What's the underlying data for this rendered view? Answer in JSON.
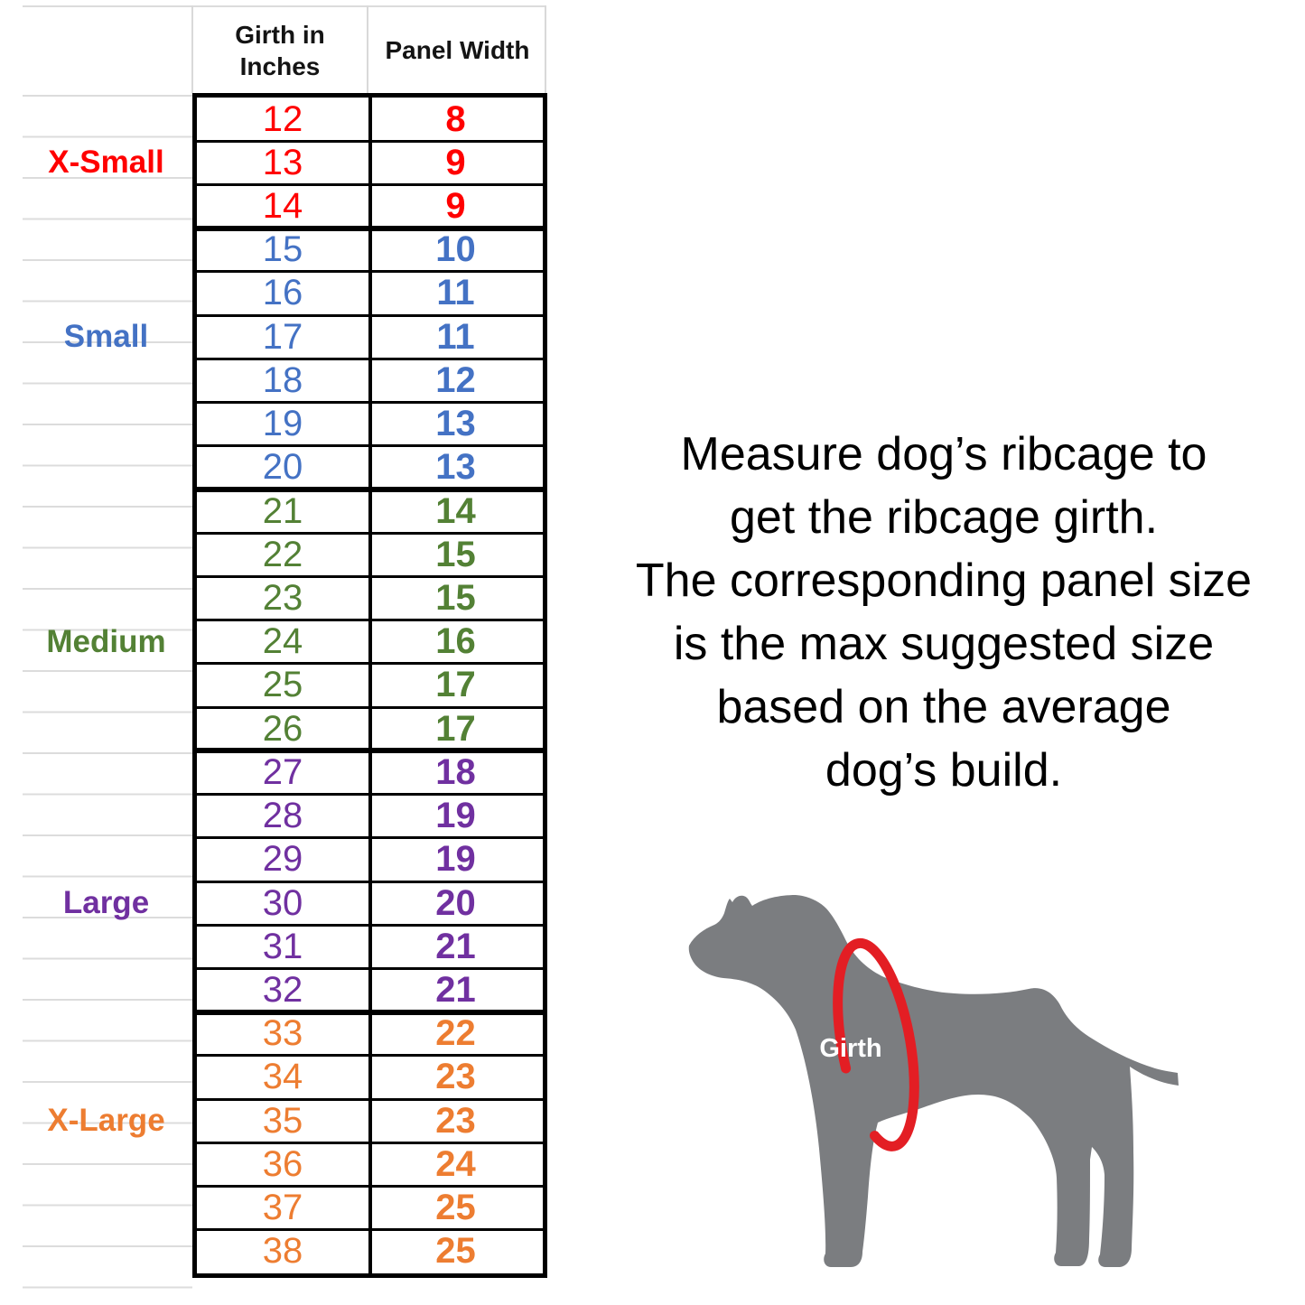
{
  "table": {
    "header": {
      "girth": "Girth in Inches",
      "panel": "Panel Width"
    },
    "groups": [
      {
        "label": "X-Small",
        "color": "#FF0000",
        "rows": [
          [
            12,
            8
          ],
          [
            13,
            9
          ],
          [
            14,
            9
          ]
        ]
      },
      {
        "label": "Small",
        "color": "#4472C4",
        "rows": [
          [
            15,
            10
          ],
          [
            16,
            11
          ],
          [
            17,
            11
          ],
          [
            18,
            12
          ],
          [
            19,
            13
          ],
          [
            20,
            13
          ]
        ]
      },
      {
        "label": "Medium",
        "color": "#538135",
        "rows": [
          [
            21,
            14
          ],
          [
            22,
            15
          ],
          [
            23,
            15
          ],
          [
            24,
            16
          ],
          [
            25,
            17
          ],
          [
            26,
            17
          ]
        ]
      },
      {
        "label": "Large",
        "color": "#7030A0",
        "rows": [
          [
            27,
            18
          ],
          [
            28,
            19
          ],
          [
            29,
            19
          ],
          [
            30,
            20
          ],
          [
            31,
            21
          ],
          [
            32,
            21
          ]
        ]
      },
      {
        "label": "X-Large",
        "color": "#ED7D31",
        "rows": [
          [
            33,
            22
          ],
          [
            34,
            23
          ],
          [
            35,
            23
          ],
          [
            36,
            24
          ],
          [
            37,
            25
          ],
          [
            38,
            25
          ]
        ]
      }
    ]
  },
  "instruction": {
    "lines": [
      "Measure dog’s ribcage to",
      "get the ribcage girth.",
      "The corresponding panel size",
      "is the max suggested size",
      "based on the average",
      "dog’s build."
    ]
  },
  "diagram": {
    "girth_label": "Girth",
    "dog_color": "#7B7D80",
    "ring_color": "#E31E24",
    "girth_label_color": "#FFFFFF"
  },
  "chart_data": {
    "type": "table",
    "columns": [
      "Size",
      "Girth in Inches",
      "Panel Width"
    ],
    "rows": [
      [
        "X-Small",
        12,
        8
      ],
      [
        "X-Small",
        13,
        9
      ],
      [
        "X-Small",
        14,
        9
      ],
      [
        "Small",
        15,
        10
      ],
      [
        "Small",
        16,
        11
      ],
      [
        "Small",
        17,
        11
      ],
      [
        "Small",
        18,
        12
      ],
      [
        "Small",
        19,
        13
      ],
      [
        "Small",
        20,
        13
      ],
      [
        "Medium",
        21,
        14
      ],
      [
        "Medium",
        22,
        15
      ],
      [
        "Medium",
        23,
        15
      ],
      [
        "Medium",
        24,
        16
      ],
      [
        "Medium",
        25,
        17
      ],
      [
        "Medium",
        26,
        17
      ],
      [
        "Large",
        27,
        18
      ],
      [
        "Large",
        28,
        19
      ],
      [
        "Large",
        29,
        19
      ],
      [
        "Large",
        30,
        20
      ],
      [
        "Large",
        31,
        21
      ],
      [
        "Large",
        32,
        21
      ],
      [
        "X-Large",
        33,
        22
      ],
      [
        "X-Large",
        34,
        23
      ],
      [
        "X-Large",
        35,
        23
      ],
      [
        "X-Large",
        36,
        24
      ],
      [
        "X-Large",
        37,
        25
      ],
      [
        "X-Large",
        38,
        25
      ]
    ]
  }
}
